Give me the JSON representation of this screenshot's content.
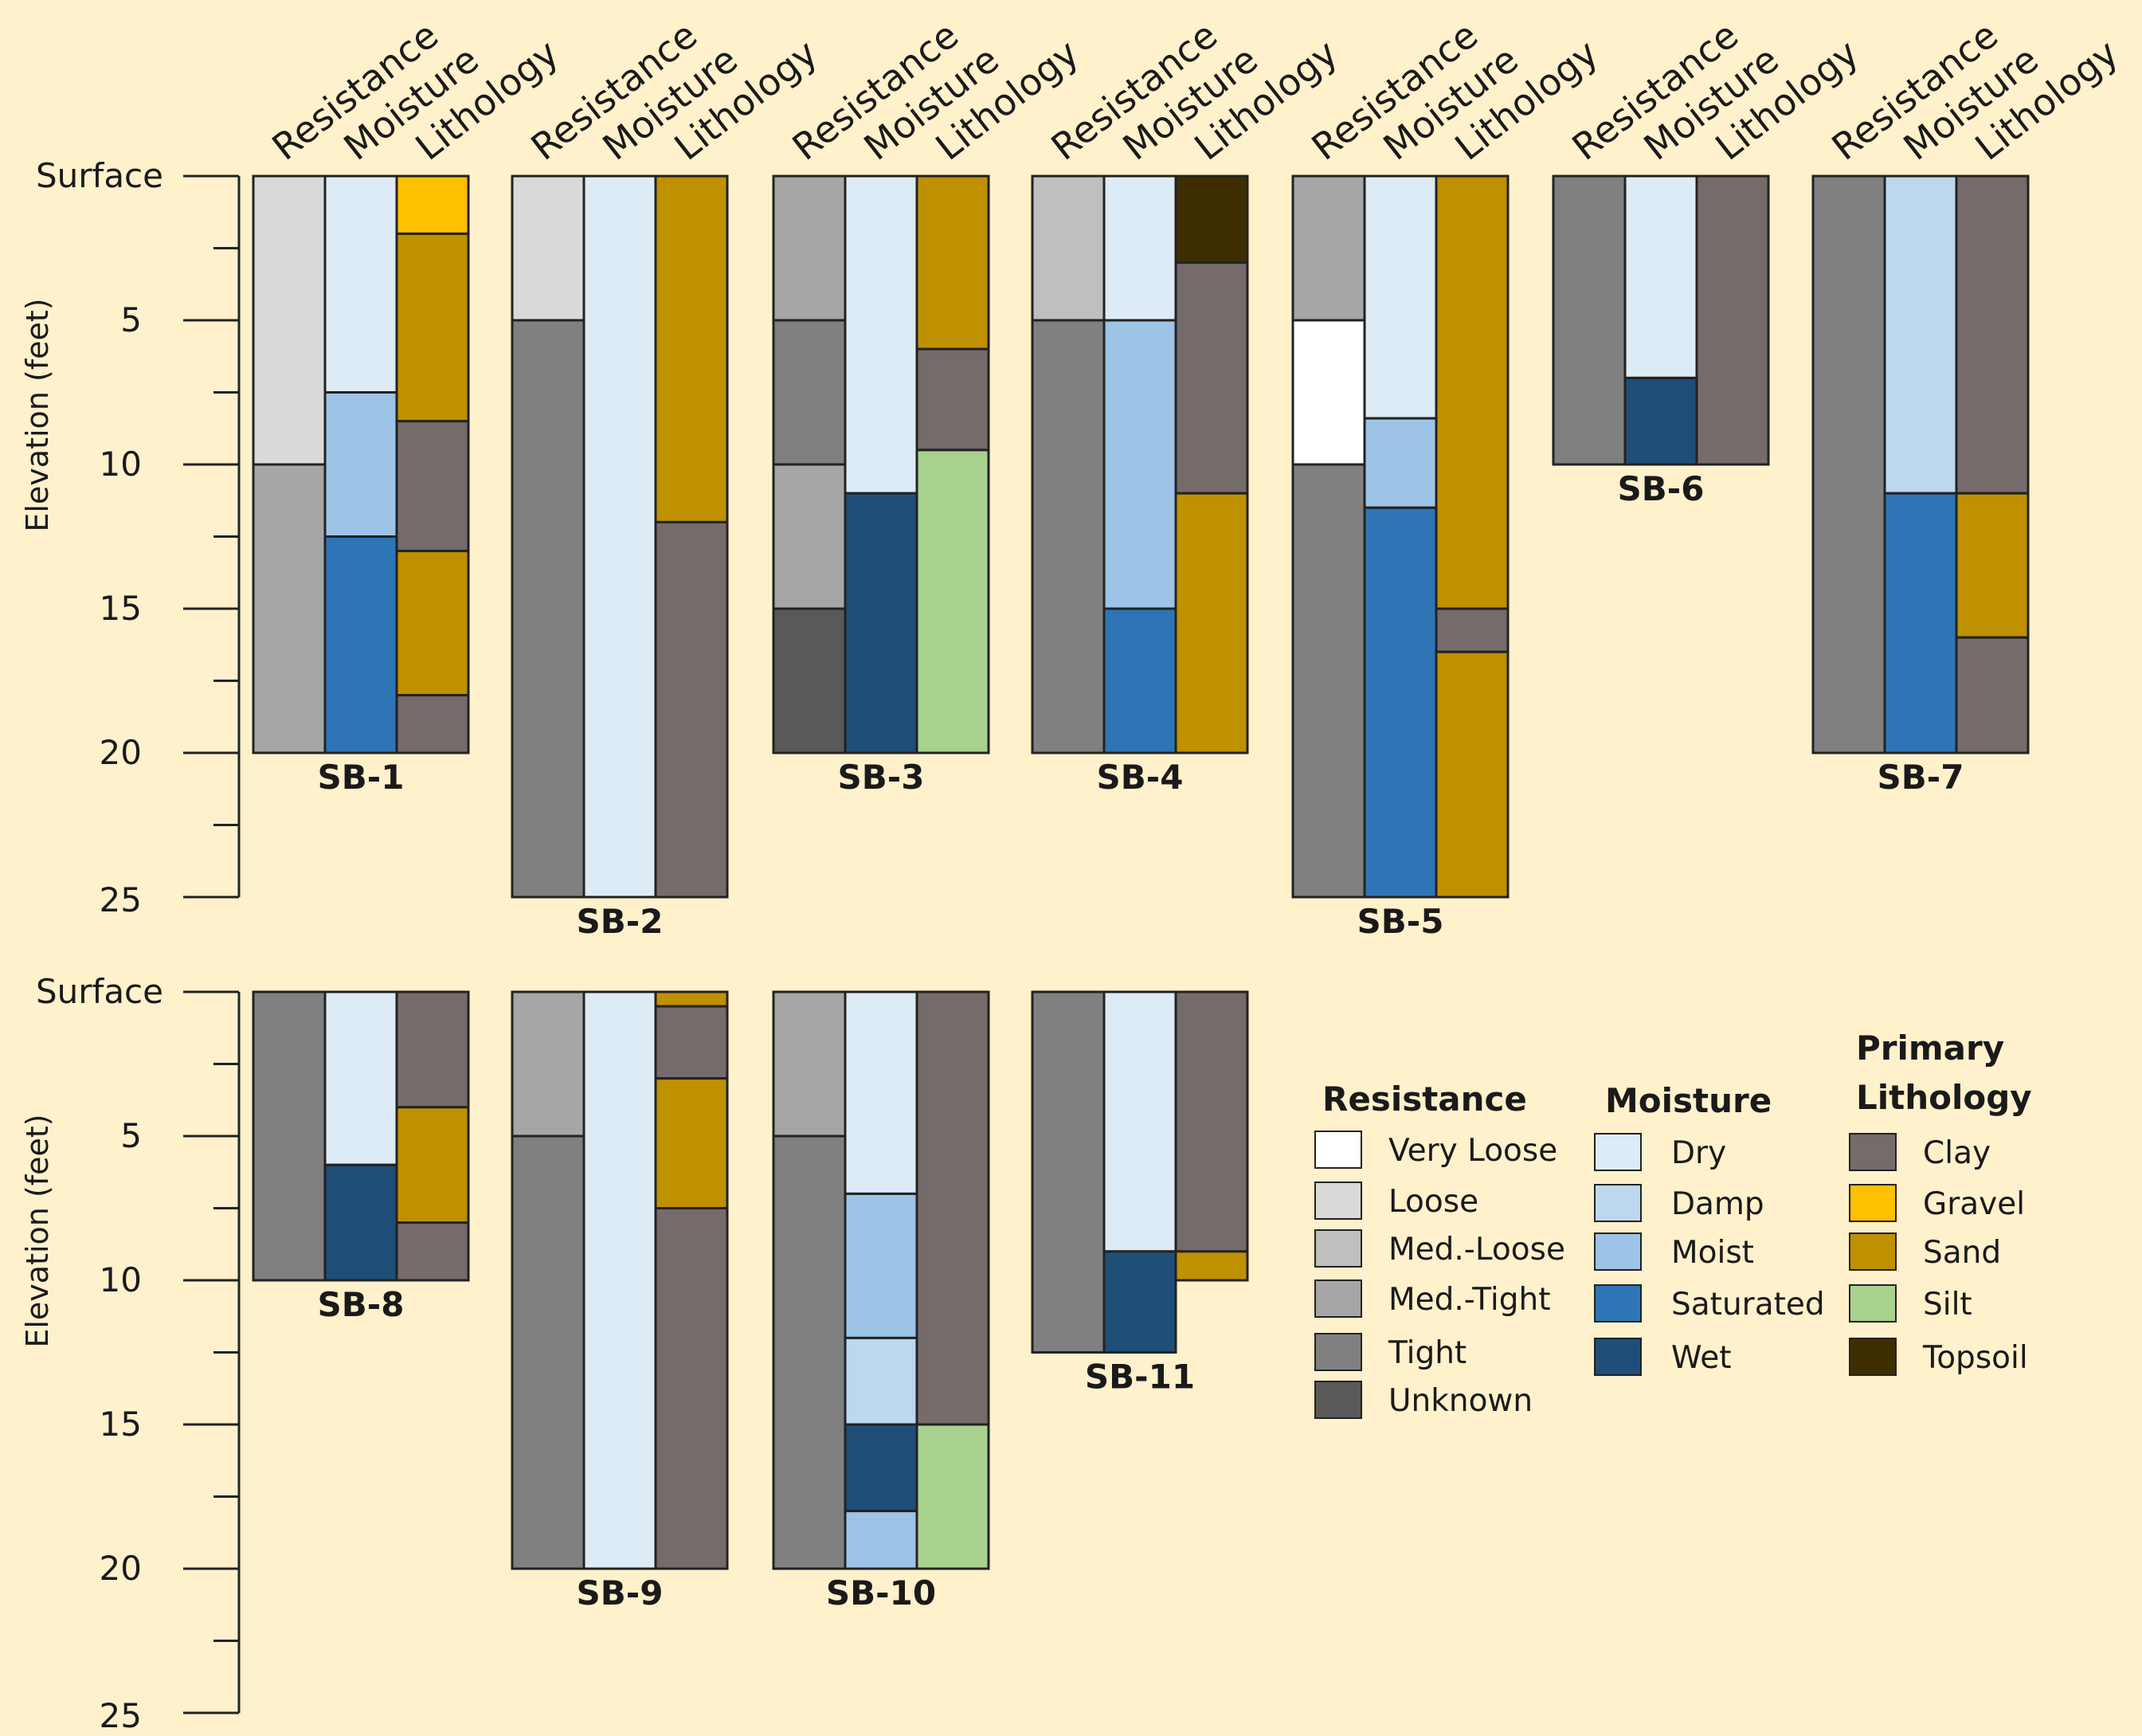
{
  "colors": {
    "resistance": {
      "Very Loose": "#FFFFFF",
      "Loose": "#D9D9D9",
      "Med.-Loose": "#BFBFBF",
      "Med.-Tight": "#A6A6A6",
      "Tight": "#808080",
      "Unknown": "#595959"
    },
    "moisture": {
      "Dry": "#DDEBF7",
      "Damp": "#BDD7EE",
      "Moist": "#9DC3E6",
      "Saturated": "#2E75B6",
      "Wet": "#1F4E79"
    },
    "lithology": {
      "Clay": "#756B6B",
      "Gravel": "#FFC000",
      "Sand": "#BF9000",
      "Silt": "#A9D18E",
      "Topsoil": "#3F2F00"
    }
  },
  "chart_data": {
    "type": "stacked-column soil boring logs",
    "column_headers": [
      "Resistance",
      "Moisture",
      "Lithology"
    ],
    "y_axis": {
      "label": "Elevation (feet)",
      "tick_labels": [
        "Surface",
        "5",
        "10",
        "15",
        "20",
        "25"
      ],
      "ylim": [
        0,
        25
      ],
      "inverted": true
    },
    "legend": {
      "resistance_title": "Resistance",
      "moisture_title": "Moisture",
      "lithology_title": [
        "Primary",
        "Lithology"
      ],
      "resistance": [
        "Very Loose",
        "Loose",
        "Med.-Loose",
        "Med.-Tight",
        "Tight",
        "Unknown"
      ],
      "moisture": [
        "Dry",
        "Damp",
        "Moist",
        "Saturated",
        "Wet"
      ],
      "lithology": [
        "Clay",
        "Gravel",
        "Sand",
        "Silt",
        "Topsoil"
      ]
    },
    "borings": [
      {
        "name": "SB-1",
        "row": 0,
        "slot": 0,
        "depth": 20,
        "resistance": [
          [
            0,
            10,
            "Loose"
          ],
          [
            10,
            20,
            "Med.-Tight"
          ]
        ],
        "moisture": [
          [
            0,
            7.5,
            "Dry"
          ],
          [
            7.5,
            12.5,
            "Moist"
          ],
          [
            12.5,
            20,
            "Saturated"
          ]
        ],
        "lithology": [
          [
            0,
            2,
            "Gravel"
          ],
          [
            2,
            8.5,
            "Sand"
          ],
          [
            8.5,
            13,
            "Clay"
          ],
          [
            13,
            18,
            "Sand"
          ],
          [
            18,
            20,
            "Clay"
          ]
        ]
      },
      {
        "name": "SB-2",
        "row": 0,
        "slot": 1,
        "depth": 25,
        "resistance": [
          [
            0,
            5,
            "Loose"
          ],
          [
            5,
            25,
            "Tight"
          ]
        ],
        "moisture": [
          [
            0,
            25,
            "Dry"
          ]
        ],
        "lithology": [
          [
            0,
            12,
            "Sand"
          ],
          [
            12,
            25,
            "Clay"
          ]
        ]
      },
      {
        "name": "SB-3",
        "row": 0,
        "slot": 2,
        "depth": 20,
        "resistance": [
          [
            0,
            5,
            "Med.-Tight"
          ],
          [
            5,
            10,
            "Tight"
          ],
          [
            10,
            15,
            "Med.-Tight"
          ],
          [
            15,
            20,
            "Unknown"
          ]
        ],
        "moisture": [
          [
            0,
            11,
            "Dry"
          ],
          [
            11,
            20,
            "Wet"
          ]
        ],
        "lithology": [
          [
            0,
            6,
            "Sand"
          ],
          [
            6,
            9.5,
            "Clay"
          ],
          [
            9.5,
            20,
            "Silt"
          ]
        ]
      },
      {
        "name": "SB-4",
        "row": 0,
        "slot": 3,
        "depth": 20,
        "resistance": [
          [
            0,
            5,
            "Med.-Loose"
          ],
          [
            5,
            20,
            "Tight"
          ]
        ],
        "moisture": [
          [
            0,
            5,
            "Dry"
          ],
          [
            5,
            15,
            "Moist"
          ],
          [
            15,
            20,
            "Saturated"
          ]
        ],
        "lithology": [
          [
            0,
            3,
            "Topsoil"
          ],
          [
            3,
            11,
            "Clay"
          ],
          [
            11,
            20,
            "Sand"
          ]
        ]
      },
      {
        "name": "SB-5",
        "row": 0,
        "slot": 4,
        "depth": 25,
        "resistance": [
          [
            0,
            5,
            "Med.-Tight"
          ],
          [
            5,
            10,
            "Very Loose"
          ],
          [
            10,
            25,
            "Tight"
          ]
        ],
        "moisture": [
          [
            0,
            8.4,
            "Dry"
          ],
          [
            8.4,
            11.5,
            "Moist"
          ],
          [
            11.5,
            25,
            "Saturated"
          ]
        ],
        "lithology": [
          [
            0,
            15,
            "Sand"
          ],
          [
            15,
            16.5,
            "Clay"
          ],
          [
            16.5,
            25,
            "Sand"
          ]
        ]
      },
      {
        "name": "SB-6",
        "row": 0,
        "slot": 5,
        "depth": 10,
        "resistance": [
          [
            0,
            10,
            "Tight"
          ]
        ],
        "moisture": [
          [
            0,
            7,
            "Dry"
          ],
          [
            7,
            10,
            "Wet"
          ]
        ],
        "lithology": [
          [
            0,
            10,
            "Clay"
          ]
        ]
      },
      {
        "name": "SB-7",
        "row": 0,
        "slot": 6,
        "depth": 20,
        "resistance": [
          [
            0,
            20,
            "Tight"
          ]
        ],
        "moisture": [
          [
            0,
            11,
            "Damp"
          ],
          [
            11,
            20,
            "Saturated"
          ]
        ],
        "lithology": [
          [
            0,
            11,
            "Clay"
          ],
          [
            11,
            16,
            "Sand"
          ],
          [
            16,
            20,
            "Clay"
          ]
        ]
      },
      {
        "name": "SB-8",
        "row": 1,
        "slot": 0,
        "depth": 10,
        "resistance": [
          [
            0,
            10,
            "Tight"
          ]
        ],
        "moisture": [
          [
            0,
            6,
            "Dry"
          ],
          [
            6,
            10,
            "Wet"
          ]
        ],
        "lithology": [
          [
            0,
            4,
            "Clay"
          ],
          [
            4,
            8,
            "Sand"
          ],
          [
            8,
            10,
            "Clay"
          ]
        ]
      },
      {
        "name": "SB-9",
        "row": 1,
        "slot": 1,
        "depth": 20,
        "resistance": [
          [
            0,
            5,
            "Med.-Tight"
          ],
          [
            5,
            20,
            "Tight"
          ]
        ],
        "moisture": [
          [
            0,
            20,
            "Dry"
          ]
        ],
        "lithology": [
          [
            0,
            0.5,
            "Sand"
          ],
          [
            0.5,
            3,
            "Clay"
          ],
          [
            3,
            7.5,
            "Sand"
          ],
          [
            7.5,
            20,
            "Clay"
          ]
        ]
      },
      {
        "name": "SB-10",
        "row": 1,
        "slot": 2,
        "depth": 20,
        "resistance": [
          [
            0,
            5,
            "Med.-Tight"
          ],
          [
            5,
            20,
            "Tight"
          ]
        ],
        "moisture": [
          [
            0,
            7,
            "Dry"
          ],
          [
            7,
            12,
            "Moist"
          ],
          [
            12,
            15,
            "Damp"
          ],
          [
            15,
            18,
            "Wet"
          ],
          [
            18,
            20,
            "Moist"
          ]
        ],
        "lithology": [
          [
            0,
            15,
            "Clay"
          ],
          [
            15,
            20,
            "Silt"
          ]
        ]
      },
      {
        "name": "SB-11",
        "row": 1,
        "slot": 3,
        "depth": 12.5,
        "resistance": [
          [
            0,
            12.5,
            "Tight"
          ]
        ],
        "moisture": [
          [
            0,
            9,
            "Dry"
          ],
          [
            9,
            12.5,
            "Wet"
          ]
        ],
        "lithology": [
          [
            0,
            9,
            "Clay"
          ],
          [
            9,
            10,
            "Sand"
          ]
        ]
      }
    ]
  }
}
